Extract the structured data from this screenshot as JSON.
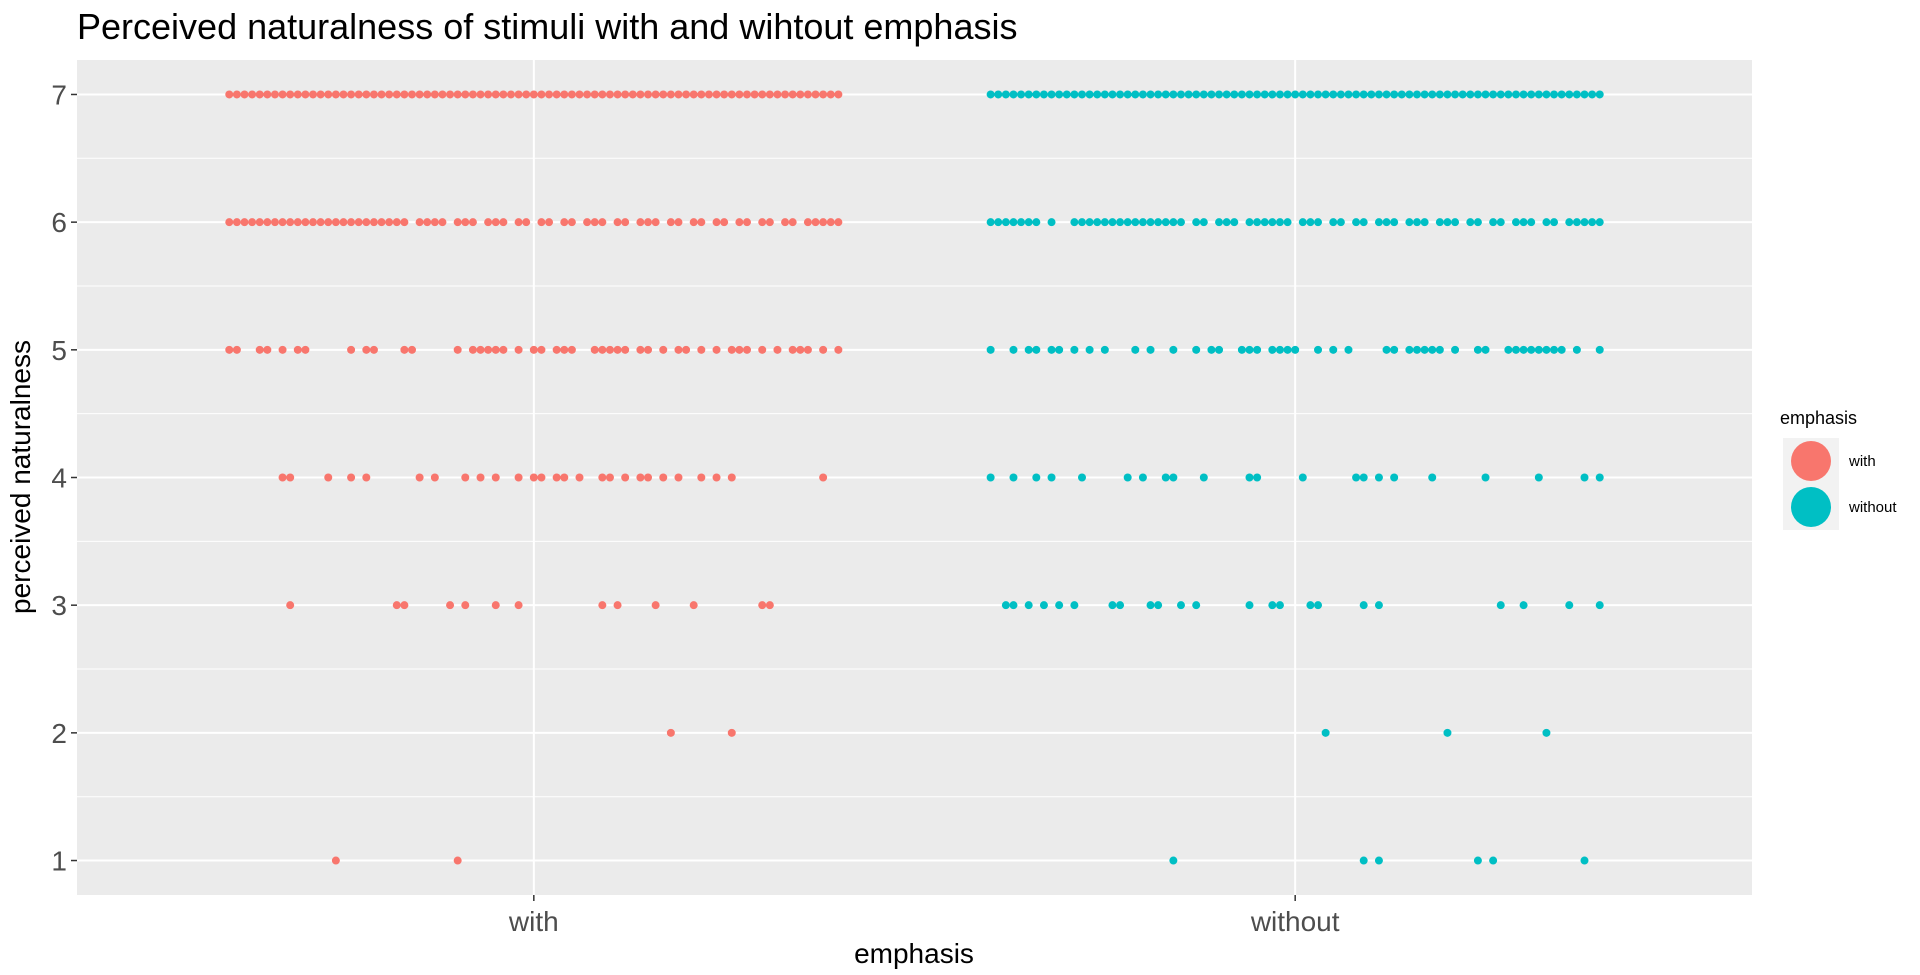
{
  "chart_data": {
    "type": "scatter",
    "title": "Perceived naturalness of stimuli with and wihtout emphasis",
    "xlabel": "emphasis",
    "ylabel": "perceived naturalness",
    "categories": [
      "with",
      "without"
    ],
    "ylim": [
      0.73,
      7.27
    ],
    "yticks": [
      1,
      2,
      3,
      4,
      5,
      6,
      7
    ],
    "grid": true,
    "legend": {
      "title": "emphasis",
      "position": "right",
      "entries": [
        {
          "label": "with",
          "color": "#F8766D"
        },
        {
          "label": "without",
          "color": "#00BFC4"
        }
      ]
    },
    "series": [
      {
        "name": "with",
        "color": "#F8766D",
        "category": "with",
        "points": [
          {
            "y": 7,
            "x_offsets": [
              -0.4,
              -0.39,
              -0.38,
              -0.37,
              -0.36,
              -0.35,
              -0.34,
              -0.33,
              -0.32,
              -0.31,
              -0.3,
              -0.29,
              -0.28,
              -0.27,
              -0.26,
              -0.25,
              -0.24,
              -0.23,
              -0.22,
              -0.21,
              -0.2,
              -0.19,
              -0.18,
              -0.17,
              -0.16,
              -0.15,
              -0.14,
              -0.13,
              -0.12,
              -0.11,
              -0.1,
              -0.09,
              -0.08,
              -0.07,
              -0.06,
              -0.05,
              -0.04,
              -0.03,
              -0.02,
              -0.01,
              0,
              0.01,
              0.02,
              0.03,
              0.04,
              0.05,
              0.06,
              0.07,
              0.08,
              0.09,
              0.1,
              0.11,
              0.12,
              0.13,
              0.14,
              0.15,
              0.16,
              0.17,
              0.18,
              0.19,
              0.2,
              0.21,
              0.22,
              0.23,
              0.24,
              0.25,
              0.26,
              0.27,
              0.28,
              0.29,
              0.3,
              0.31,
              0.32,
              0.33,
              0.34,
              0.35,
              0.36,
              0.37,
              0.38,
              0.39,
              0.4
            ]
          },
          {
            "y": 6,
            "x_offsets": [
              -0.4,
              -0.39,
              -0.38,
              -0.37,
              -0.36,
              -0.35,
              -0.34,
              -0.33,
              -0.32,
              -0.31,
              -0.3,
              -0.29,
              -0.28,
              -0.27,
              -0.26,
              -0.25,
              -0.24,
              -0.23,
              -0.22,
              -0.21,
              -0.2,
              -0.19,
              -0.18,
              -0.17,
              -0.15,
              -0.14,
              -0.13,
              -0.12,
              -0.1,
              -0.09,
              -0.08,
              -0.06,
              -0.05,
              -0.04,
              -0.02,
              -0.01,
              0.01,
              0.02,
              0.04,
              0.05,
              0.07,
              0.08,
              0.09,
              0.11,
              0.12,
              0.14,
              0.15,
              0.16,
              0.18,
              0.19,
              0.21,
              0.22,
              0.24,
              0.25,
              0.27,
              0.28,
              0.3,
              0.31,
              0.33,
              0.34,
              0.36,
              0.37,
              0.38,
              0.39,
              0.4
            ]
          },
          {
            "y": 5,
            "x_offsets": [
              -0.4,
              -0.39,
              -0.36,
              -0.35,
              -0.33,
              -0.31,
              -0.3,
              -0.24,
              -0.22,
              -0.21,
              -0.17,
              -0.16,
              -0.1,
              -0.08,
              -0.07,
              -0.06,
              -0.05,
              -0.04,
              -0.02,
              0,
              0.01,
              0.03,
              0.04,
              0.05,
              0.08,
              0.09,
              0.1,
              0.11,
              0.12,
              0.14,
              0.15,
              0.17,
              0.19,
              0.2,
              0.22,
              0.24,
              0.26,
              0.27,
              0.28,
              0.3,
              0.32,
              0.34,
              0.35,
              0.36,
              0.38,
              0.4
            ]
          },
          {
            "y": 4,
            "x_offsets": [
              -0.33,
              -0.32,
              -0.27,
              -0.24,
              -0.22,
              -0.15,
              -0.13,
              -0.09,
              -0.07,
              -0.05,
              -0.02,
              0,
              0.01,
              0.03,
              0.04,
              0.06,
              0.09,
              0.1,
              0.12,
              0.14,
              0.15,
              0.17,
              0.19,
              0.22,
              0.24,
              0.26,
              0.38
            ]
          },
          {
            "y": 3,
            "x_offsets": [
              -0.32,
              -0.18,
              -0.17,
              -0.11,
              -0.09,
              -0.05,
              -0.02,
              0.09,
              0.11,
              0.16,
              0.21,
              0.3,
              0.31
            ]
          },
          {
            "y": 2,
            "x_offsets": [
              0.18,
              0.26
            ]
          },
          {
            "y": 1,
            "x_offsets": [
              -0.26,
              -0.1
            ]
          }
        ]
      },
      {
        "name": "without",
        "color": "#00BFC4",
        "category": "without",
        "points": [
          {
            "y": 7,
            "x_offsets": [
              -0.4,
              -0.39,
              -0.38,
              -0.37,
              -0.36,
              -0.35,
              -0.34,
              -0.33,
              -0.32,
              -0.31,
              -0.3,
              -0.29,
              -0.28,
              -0.27,
              -0.26,
              -0.25,
              -0.24,
              -0.23,
              -0.22,
              -0.21,
              -0.2,
              -0.19,
              -0.18,
              -0.17,
              -0.16,
              -0.15,
              -0.14,
              -0.13,
              -0.12,
              -0.11,
              -0.1,
              -0.09,
              -0.08,
              -0.07,
              -0.06,
              -0.05,
              -0.04,
              -0.03,
              -0.02,
              -0.01,
              0,
              0.01,
              0.02,
              0.03,
              0.04,
              0.05,
              0.06,
              0.07,
              0.08,
              0.09,
              0.1,
              0.11,
              0.12,
              0.13,
              0.14,
              0.15,
              0.16,
              0.17,
              0.18,
              0.19,
              0.2,
              0.21,
              0.22,
              0.23,
              0.24,
              0.25,
              0.26,
              0.27,
              0.28,
              0.29,
              0.3,
              0.31,
              0.32,
              0.33,
              0.34,
              0.35,
              0.36,
              0.37,
              0.38,
              0.39,
              0.4
            ]
          },
          {
            "y": 6,
            "x_offsets": [
              -0.4,
              -0.39,
              -0.38,
              -0.37,
              -0.36,
              -0.35,
              -0.34,
              -0.32,
              -0.29,
              -0.28,
              -0.27,
              -0.26,
              -0.25,
              -0.24,
              -0.23,
              -0.22,
              -0.21,
              -0.2,
              -0.19,
              -0.18,
              -0.17,
              -0.16,
              -0.15,
              -0.13,
              -0.12,
              -0.1,
              -0.09,
              -0.08,
              -0.06,
              -0.05,
              -0.04,
              -0.03,
              -0.02,
              -0.01,
              0.01,
              0.02,
              0.03,
              0.05,
              0.06,
              0.08,
              0.09,
              0.11,
              0.12,
              0.13,
              0.15,
              0.16,
              0.17,
              0.19,
              0.2,
              0.21,
              0.23,
              0.24,
              0.26,
              0.27,
              0.29,
              0.3,
              0.31,
              0.33,
              0.34,
              0.36,
              0.37,
              0.38,
              0.39,
              0.4
            ]
          },
          {
            "y": 5,
            "x_offsets": [
              -0.4,
              -0.37,
              -0.35,
              -0.34,
              -0.32,
              -0.31,
              -0.29,
              -0.27,
              -0.25,
              -0.21,
              -0.19,
              -0.16,
              -0.13,
              -0.11,
              -0.1,
              -0.07,
              -0.06,
              -0.05,
              -0.03,
              -0.02,
              -0.01,
              0,
              0.03,
              0.05,
              0.07,
              0.12,
              0.13,
              0.15,
              0.16,
              0.17,
              0.18,
              0.19,
              0.21,
              0.24,
              0.25,
              0.28,
              0.29,
              0.3,
              0.31,
              0.32,
              0.33,
              0.34,
              0.35,
              0.37,
              0.4
            ]
          },
          {
            "y": 4,
            "x_offsets": [
              -0.4,
              -0.37,
              -0.34,
              -0.32,
              -0.28,
              -0.22,
              -0.2,
              -0.17,
              -0.16,
              -0.12,
              -0.06,
              -0.05,
              0.01,
              0.08,
              0.09,
              0.11,
              0.13,
              0.18,
              0.25,
              0.32,
              0.38,
              0.4
            ]
          },
          {
            "y": 3,
            "x_offsets": [
              -0.38,
              -0.37,
              -0.35,
              -0.33,
              -0.31,
              -0.29,
              -0.24,
              -0.23,
              -0.19,
              -0.18,
              -0.15,
              -0.13,
              -0.06,
              -0.03,
              -0.02,
              0.02,
              0.03,
              0.09,
              0.11,
              0.27,
              0.3,
              0.36,
              0.4
            ]
          },
          {
            "y": 2,
            "x_offsets": [
              0.04,
              0.2,
              0.33
            ]
          },
          {
            "y": 1,
            "x_offsets": [
              -0.16,
              0.09,
              0.11,
              0.24,
              0.26,
              0.38
            ]
          }
        ]
      }
    ]
  }
}
